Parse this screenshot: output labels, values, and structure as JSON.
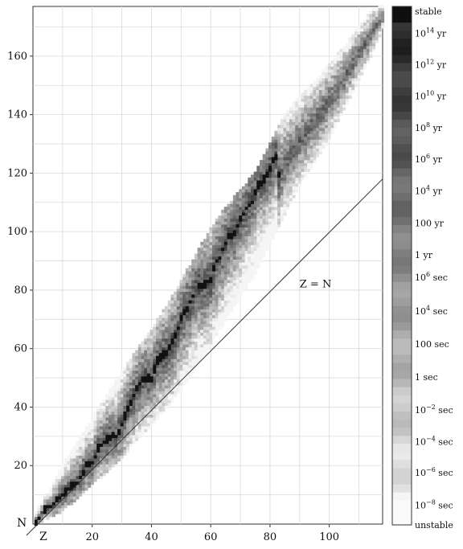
{
  "chart_data": {
    "type": "heatmap",
    "title": "",
    "xlabel": "Z",
    "ylabel": "N",
    "xlim": [
      0,
      118
    ],
    "ylim": [
      0,
      177
    ],
    "x_ticks": [
      20,
      40,
      60,
      80,
      100
    ],
    "y_ticks": [
      20,
      40,
      60,
      80,
      100,
      120,
      140,
      160
    ],
    "grid": true,
    "diagonal_line": {
      "label": "Z = N",
      "label_position": [
        90,
        81
      ]
    },
    "stability_line": [
      [
        1,
        1
      ],
      [
        2,
        2
      ],
      [
        4,
        5
      ],
      [
        6,
        6
      ],
      [
        8,
        8
      ],
      [
        10,
        10
      ],
      [
        12,
        12
      ],
      [
        14,
        14
      ],
      [
        16,
        16
      ],
      [
        18,
        20
      ],
      [
        20,
        20
      ],
      [
        22,
        26
      ],
      [
        24,
        28
      ],
      [
        26,
        30
      ],
      [
        28,
        30
      ],
      [
        30,
        34
      ],
      [
        32,
        40
      ],
      [
        34,
        44
      ],
      [
        36,
        48
      ],
      [
        38,
        50
      ],
      [
        40,
        50
      ],
      [
        42,
        56
      ],
      [
        44,
        58
      ],
      [
        46,
        60
      ],
      [
        48,
        64
      ],
      [
        50,
        70
      ],
      [
        52,
        74
      ],
      [
        54,
        78
      ],
      [
        56,
        82
      ],
      [
        58,
        82
      ],
      [
        60,
        84
      ],
      [
        62,
        90
      ],
      [
        64,
        94
      ],
      [
        66,
        98
      ],
      [
        68,
        100
      ],
      [
        70,
        104
      ],
      [
        72,
        108
      ],
      [
        74,
        110
      ],
      [
        76,
        116
      ],
      [
        78,
        118
      ],
      [
        80,
        122
      ],
      [
        82,
        126
      ]
    ],
    "band_edges": [
      {
        "z": 1,
        "n_min": 0,
        "n_max": 4
      },
      {
        "z": 5,
        "n_min": 2,
        "n_max": 10
      },
      {
        "z": 10,
        "n_min": 5,
        "n_max": 20
      },
      {
        "z": 15,
        "n_min": 9,
        "n_max": 28
      },
      {
        "z": 20,
        "n_min": 14,
        "n_max": 36
      },
      {
        "z": 25,
        "n_min": 18,
        "n_max": 44
      },
      {
        "z": 30,
        "n_min": 23,
        "n_max": 52
      },
      {
        "z": 35,
        "n_min": 29,
        "n_max": 59
      },
      {
        "z": 40,
        "n_min": 34,
        "n_max": 67
      },
      {
        "z": 45,
        "n_min": 40,
        "n_max": 74
      },
      {
        "z": 50,
        "n_min": 46,
        "n_max": 83
      },
      {
        "z": 55,
        "n_min": 54,
        "n_max": 92
      },
      {
        "z": 60,
        "n_min": 62,
        "n_max": 101
      },
      {
        "z": 65,
        "n_min": 70,
        "n_max": 108
      },
      {
        "z": 70,
        "n_min": 78,
        "n_max": 114
      },
      {
        "z": 75,
        "n_min": 86,
        "n_max": 120
      },
      {
        "z": 80,
        "n_min": 96,
        "n_max": 130
      },
      {
        "z": 85,
        "n_min": 106,
        "n_max": 140
      },
      {
        "z": 90,
        "n_min": 116,
        "n_max": 146
      },
      {
        "z": 95,
        "n_min": 124,
        "n_max": 151
      },
      {
        "z": 100,
        "n_min": 132,
        "n_max": 157
      },
      {
        "z": 105,
        "n_min": 142,
        "n_max": 163
      },
      {
        "z": 110,
        "n_min": 152,
        "n_max": 170
      },
      {
        "z": 115,
        "n_min": 162,
        "n_max": 176
      },
      {
        "z": 118,
        "n_min": 170,
        "n_max": 177
      }
    ],
    "colorbar": {
      "scale": "grayscale, dark = long half-life",
      "labels": [
        {
          "text": "stable",
          "sup": "",
          "tail": "",
          "frac": 0.0
        },
        {
          "text": "10",
          "sup": "14",
          "tail": " yr",
          "frac": 0.043
        },
        {
          "text": "10",
          "sup": "12",
          "tail": " yr",
          "frac": 0.104
        },
        {
          "text": "10",
          "sup": "10",
          "tail": " yr",
          "frac": 0.165
        },
        {
          "text": "10",
          "sup": "8",
          "tail": " yr",
          "frac": 0.227
        },
        {
          "text": "10",
          "sup": "6",
          "tail": " yr",
          "frac": 0.288
        },
        {
          "text": "10",
          "sup": "4",
          "tail": " yr",
          "frac": 0.35
        },
        {
          "text": "100 yr",
          "sup": "",
          "tail": "",
          "frac": 0.412
        },
        {
          "text": "1 yr",
          "sup": "",
          "tail": "",
          "frac": 0.474
        },
        {
          "text": "10",
          "sup": "6",
          "tail": " sec",
          "frac": 0.518
        },
        {
          "text": "10",
          "sup": "4",
          "tail": " sec",
          "frac": 0.584
        },
        {
          "text": "100 sec",
          "sup": "",
          "tail": "",
          "frac": 0.648
        },
        {
          "text": "1 sec",
          "sup": "",
          "tail": "",
          "frac": 0.712
        },
        {
          "text": "10",
          "sup": "−2",
          "tail": " sec",
          "frac": 0.776
        },
        {
          "text": "10",
          "sup": "−4",
          "tail": " sec",
          "frac": 0.838
        },
        {
          "text": "10",
          "sup": "−6",
          "tail": " sec",
          "frac": 0.898
        },
        {
          "text": "10",
          "sup": "−8",
          "tail": " sec",
          "frac": 0.962
        },
        {
          "text": "unstable",
          "sup": "",
          "tail": "",
          "frac": 1.0
        }
      ]
    }
  }
}
